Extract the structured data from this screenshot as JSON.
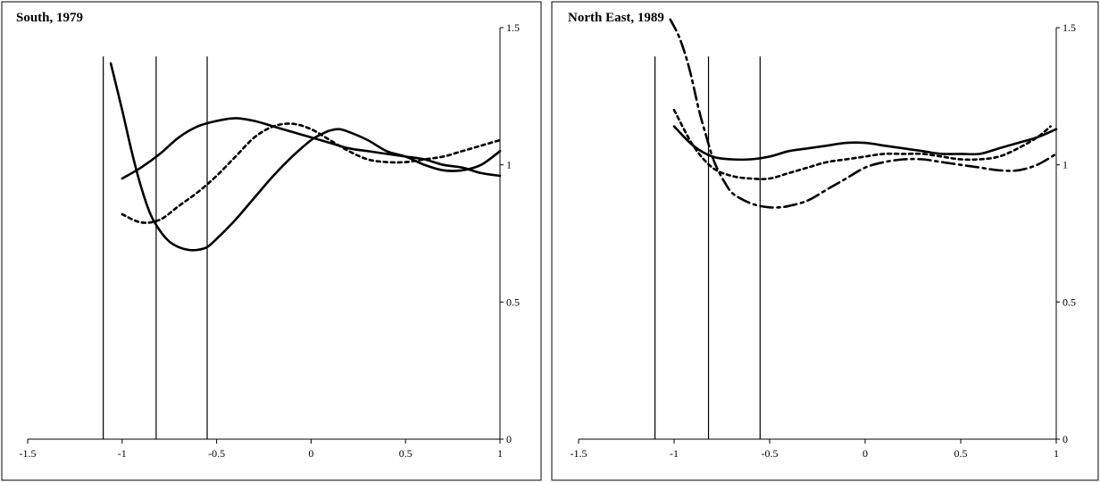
{
  "chart_data": [
    {
      "type": "line",
      "title": "South, 1979",
      "xlim": [
        -1.5,
        1
      ],
      "ylim": [
        0,
        1.5
      ],
      "x_ticks": [
        -1.5,
        -1,
        -0.5,
        0,
        0.5,
        1
      ],
      "x_tick_labels": [
        "-1.5",
        "-1",
        "-0.5",
        "0",
        "0.5",
        "1"
      ],
      "y_ticks": [
        0,
        0.5,
        1,
        1.5
      ],
      "y_tick_labels": [
        "0",
        "0.5",
        "1",
        "1.5"
      ],
      "y_axis_side": "right",
      "vertical_lines": [
        -1.1,
        -0.82,
        -0.55
      ],
      "series": [
        {
          "style": "solid",
          "x": [
            -1.0,
            -0.9,
            -0.8,
            -0.7,
            -0.6,
            -0.5,
            -0.4,
            -0.3,
            -0.2,
            -0.1,
            0.0,
            0.1,
            0.2,
            0.3,
            0.4,
            0.5,
            0.6,
            0.7,
            0.8,
            0.9,
            1.0
          ],
          "y": [
            0.95,
            0.99,
            1.04,
            1.1,
            1.14,
            1.16,
            1.17,
            1.16,
            1.14,
            1.12,
            1.1,
            1.08,
            1.06,
            1.05,
            1.04,
            1.03,
            1.02,
            1.0,
            0.99,
            0.97,
            0.96
          ]
        },
        {
          "style": "dashed",
          "x": [
            -1.0,
            -0.9,
            -0.8,
            -0.7,
            -0.6,
            -0.5,
            -0.4,
            -0.3,
            -0.2,
            -0.1,
            0.0,
            0.1,
            0.2,
            0.3,
            0.4,
            0.5,
            0.6,
            0.7,
            0.8,
            0.9,
            1.0
          ],
          "y": [
            0.82,
            0.79,
            0.8,
            0.85,
            0.9,
            0.96,
            1.03,
            1.1,
            1.14,
            1.15,
            1.13,
            1.09,
            1.05,
            1.02,
            1.01,
            1.01,
            1.02,
            1.03,
            1.05,
            1.07,
            1.09
          ]
        },
        {
          "style": "solid",
          "x": [
            -1.06,
            -1.0,
            -0.95,
            -0.9,
            -0.85,
            -0.8,
            -0.75,
            -0.7,
            -0.65,
            -0.6,
            -0.55,
            -0.5,
            -0.4,
            -0.3,
            -0.2,
            -0.1,
            0.0,
            0.05,
            0.1,
            0.15,
            0.2,
            0.3,
            0.4,
            0.5,
            0.6,
            0.7,
            0.8,
            0.9,
            1.0
          ],
          "y": [
            1.37,
            1.2,
            1.05,
            0.92,
            0.82,
            0.76,
            0.72,
            0.7,
            0.69,
            0.69,
            0.7,
            0.73,
            0.8,
            0.88,
            0.96,
            1.03,
            1.09,
            1.11,
            1.125,
            1.13,
            1.12,
            1.09,
            1.05,
            1.03,
            1.0,
            0.98,
            0.98,
            1.0,
            1.05
          ]
        }
      ]
    },
    {
      "type": "line",
      "title": "North East, 1989",
      "xlim": [
        -1.5,
        1
      ],
      "ylim": [
        0,
        1.5
      ],
      "x_ticks": [
        -1.5,
        -1,
        -0.5,
        0,
        0.5,
        1
      ],
      "x_tick_labels": [
        "-1.5",
        "-1",
        "-0.5",
        "0",
        "0.5",
        "1"
      ],
      "y_ticks": [
        0,
        0.5,
        1,
        1.5
      ],
      "y_tick_labels": [
        "0",
        "0.5",
        "1",
        "1.5"
      ],
      "y_axis_side": "right",
      "vertical_lines": [
        -1.1,
        -0.82,
        -0.55
      ],
      "series": [
        {
          "style": "solid",
          "x": [
            -1.0,
            -0.9,
            -0.8,
            -0.7,
            -0.6,
            -0.5,
            -0.4,
            -0.3,
            -0.2,
            -0.1,
            0.0,
            0.1,
            0.2,
            0.3,
            0.4,
            0.5,
            0.6,
            0.7,
            0.8,
            0.9,
            1.0
          ],
          "y": [
            1.14,
            1.07,
            1.03,
            1.02,
            1.02,
            1.03,
            1.05,
            1.06,
            1.07,
            1.08,
            1.08,
            1.07,
            1.06,
            1.05,
            1.04,
            1.04,
            1.04,
            1.06,
            1.08,
            1.1,
            1.13
          ]
        },
        {
          "style": "dashed",
          "x": [
            -1.0,
            -0.9,
            -0.8,
            -0.7,
            -0.6,
            -0.5,
            -0.4,
            -0.3,
            -0.2,
            -0.1,
            0.0,
            0.1,
            0.2,
            0.3,
            0.4,
            0.5,
            0.6,
            0.7,
            0.8,
            0.9,
            0.97
          ],
          "y": [
            1.2,
            1.07,
            0.99,
            0.96,
            0.95,
            0.95,
            0.97,
            0.99,
            1.01,
            1.02,
            1.03,
            1.04,
            1.04,
            1.04,
            1.03,
            1.02,
            1.02,
            1.03,
            1.06,
            1.1,
            1.14
          ]
        },
        {
          "style": "dashdot",
          "x": [
            -1.02,
            -0.97,
            -0.92,
            -0.87,
            -0.83,
            -0.8,
            -0.77,
            -0.73,
            -0.7,
            -0.66,
            -0.6,
            -0.55,
            -0.5,
            -0.45,
            -0.4,
            -0.3,
            -0.2,
            -0.1,
            0.0,
            0.1,
            0.2,
            0.3,
            0.4,
            0.5,
            0.6,
            0.7,
            0.8,
            0.9,
            1.0
          ],
          "y": [
            1.53,
            1.46,
            1.35,
            1.2,
            1.1,
            1.03,
            0.98,
            0.93,
            0.9,
            0.88,
            0.86,
            0.85,
            0.845,
            0.845,
            0.85,
            0.87,
            0.91,
            0.95,
            0.99,
            1.01,
            1.02,
            1.02,
            1.01,
            1.0,
            0.99,
            0.98,
            0.98,
            1.0,
            1.04
          ]
        }
      ]
    }
  ]
}
